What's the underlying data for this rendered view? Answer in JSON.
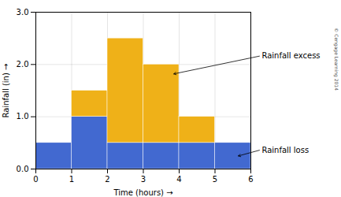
{
  "chart_data": {
    "type": "bar",
    "stacked": true,
    "xlabel": "Time (hours)",
    "ylabel": "Rainfall (in)",
    "bins": [
      0,
      1,
      2,
      3,
      4,
      5,
      6
    ],
    "series": [
      {
        "name": "Rainfall loss",
        "values": [
          0.5,
          1.0,
          0.5,
          0.5,
          0.5,
          0.5
        ]
      },
      {
        "name": "Rainfall excess",
        "values": [
          0.0,
          0.5,
          2.0,
          1.5,
          0.5,
          0.0
        ]
      }
    ],
    "xlim": [
      0,
      6
    ],
    "xticks": [
      0,
      1,
      2,
      3,
      4,
      5,
      6
    ],
    "ylim": [
      0.0,
      3.0
    ],
    "yticks": [
      {
        "value": 0.0,
        "label": "0.0"
      },
      {
        "value": 1.0,
        "label": "1.0"
      },
      {
        "value": 2.0,
        "label": "2.0"
      },
      {
        "value": 3.0,
        "label": "3.0"
      }
    ],
    "grid": true,
    "annotations": [
      {
        "text": "Rainfall excess",
        "x": 3.85,
        "y": 1.82
      },
      {
        "text": "Rainfall loss",
        "x": 5.65,
        "y": 0.25
      }
    ],
    "caption": "© Cengage Learning 2014"
  }
}
